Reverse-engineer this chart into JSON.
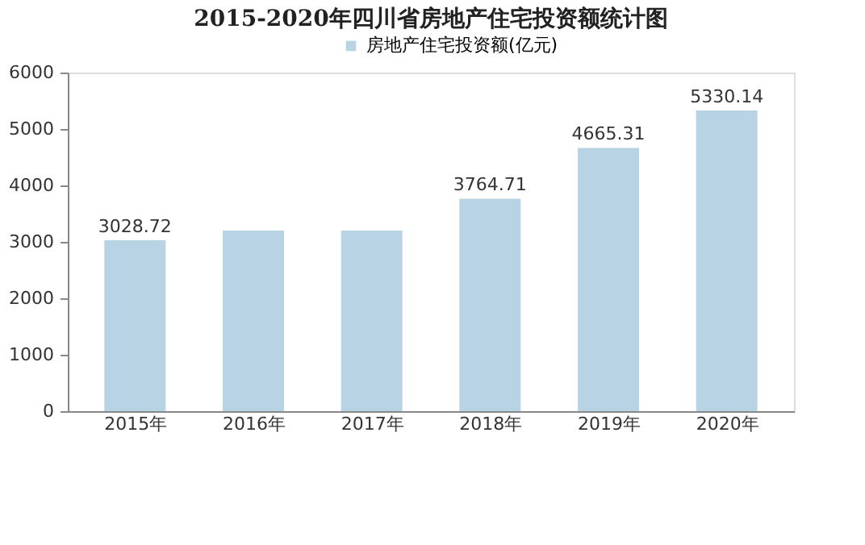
{
  "chart_data": {
    "type": "bar",
    "title": "2015-2020年四川省房地产住宅投资额统计图",
    "categories": [
      "2015年",
      "2016年",
      "2017年",
      "2018年",
      "2019年",
      "2020年"
    ],
    "series": [
      {
        "name": "房地产住宅投资额(亿元)",
        "color": "#b7d3e4",
        "values": [
          3028.72,
          3200,
          3200,
          3764.71,
          4665.31,
          5330.14
        ]
      }
    ],
    "value_labels": [
      "3028.72",
      null,
      null,
      "3764.71",
      "4665.31",
      "5330.14"
    ],
    "ylim": [
      0,
      6000
    ],
    "yticks": [
      0,
      1000,
      2000,
      3000,
      4000,
      5000,
      6000
    ],
    "grid": false,
    "legend": "top"
  }
}
